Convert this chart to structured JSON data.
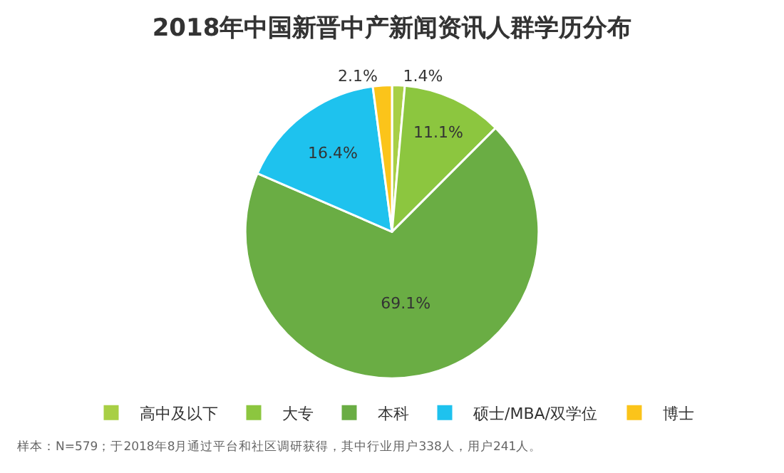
{
  "chart_data": {
    "type": "pie",
    "title": "2018年中国新晋中产新闻资讯人群学历分布",
    "categories": [
      "高中及以下",
      "大专",
      "本科",
      "硕士/MBA/双学位",
      "博士"
    ],
    "values": [
      1.4,
      11.1,
      69.1,
      16.4,
      2.1
    ],
    "value_labels": [
      "1.4%",
      "11.1%",
      "69.1%",
      "16.4%",
      "2.1%"
    ],
    "colors": [
      "#a8cf45",
      "#8cc63f",
      "#6aad44",
      "#1ec2ee",
      "#fbc41a"
    ],
    "legend": "bottom",
    "annotations": [
      "样本：N=579；于2018年8月通过平台和社区调研获得，其中行业用户338人，用户241人。"
    ]
  }
}
